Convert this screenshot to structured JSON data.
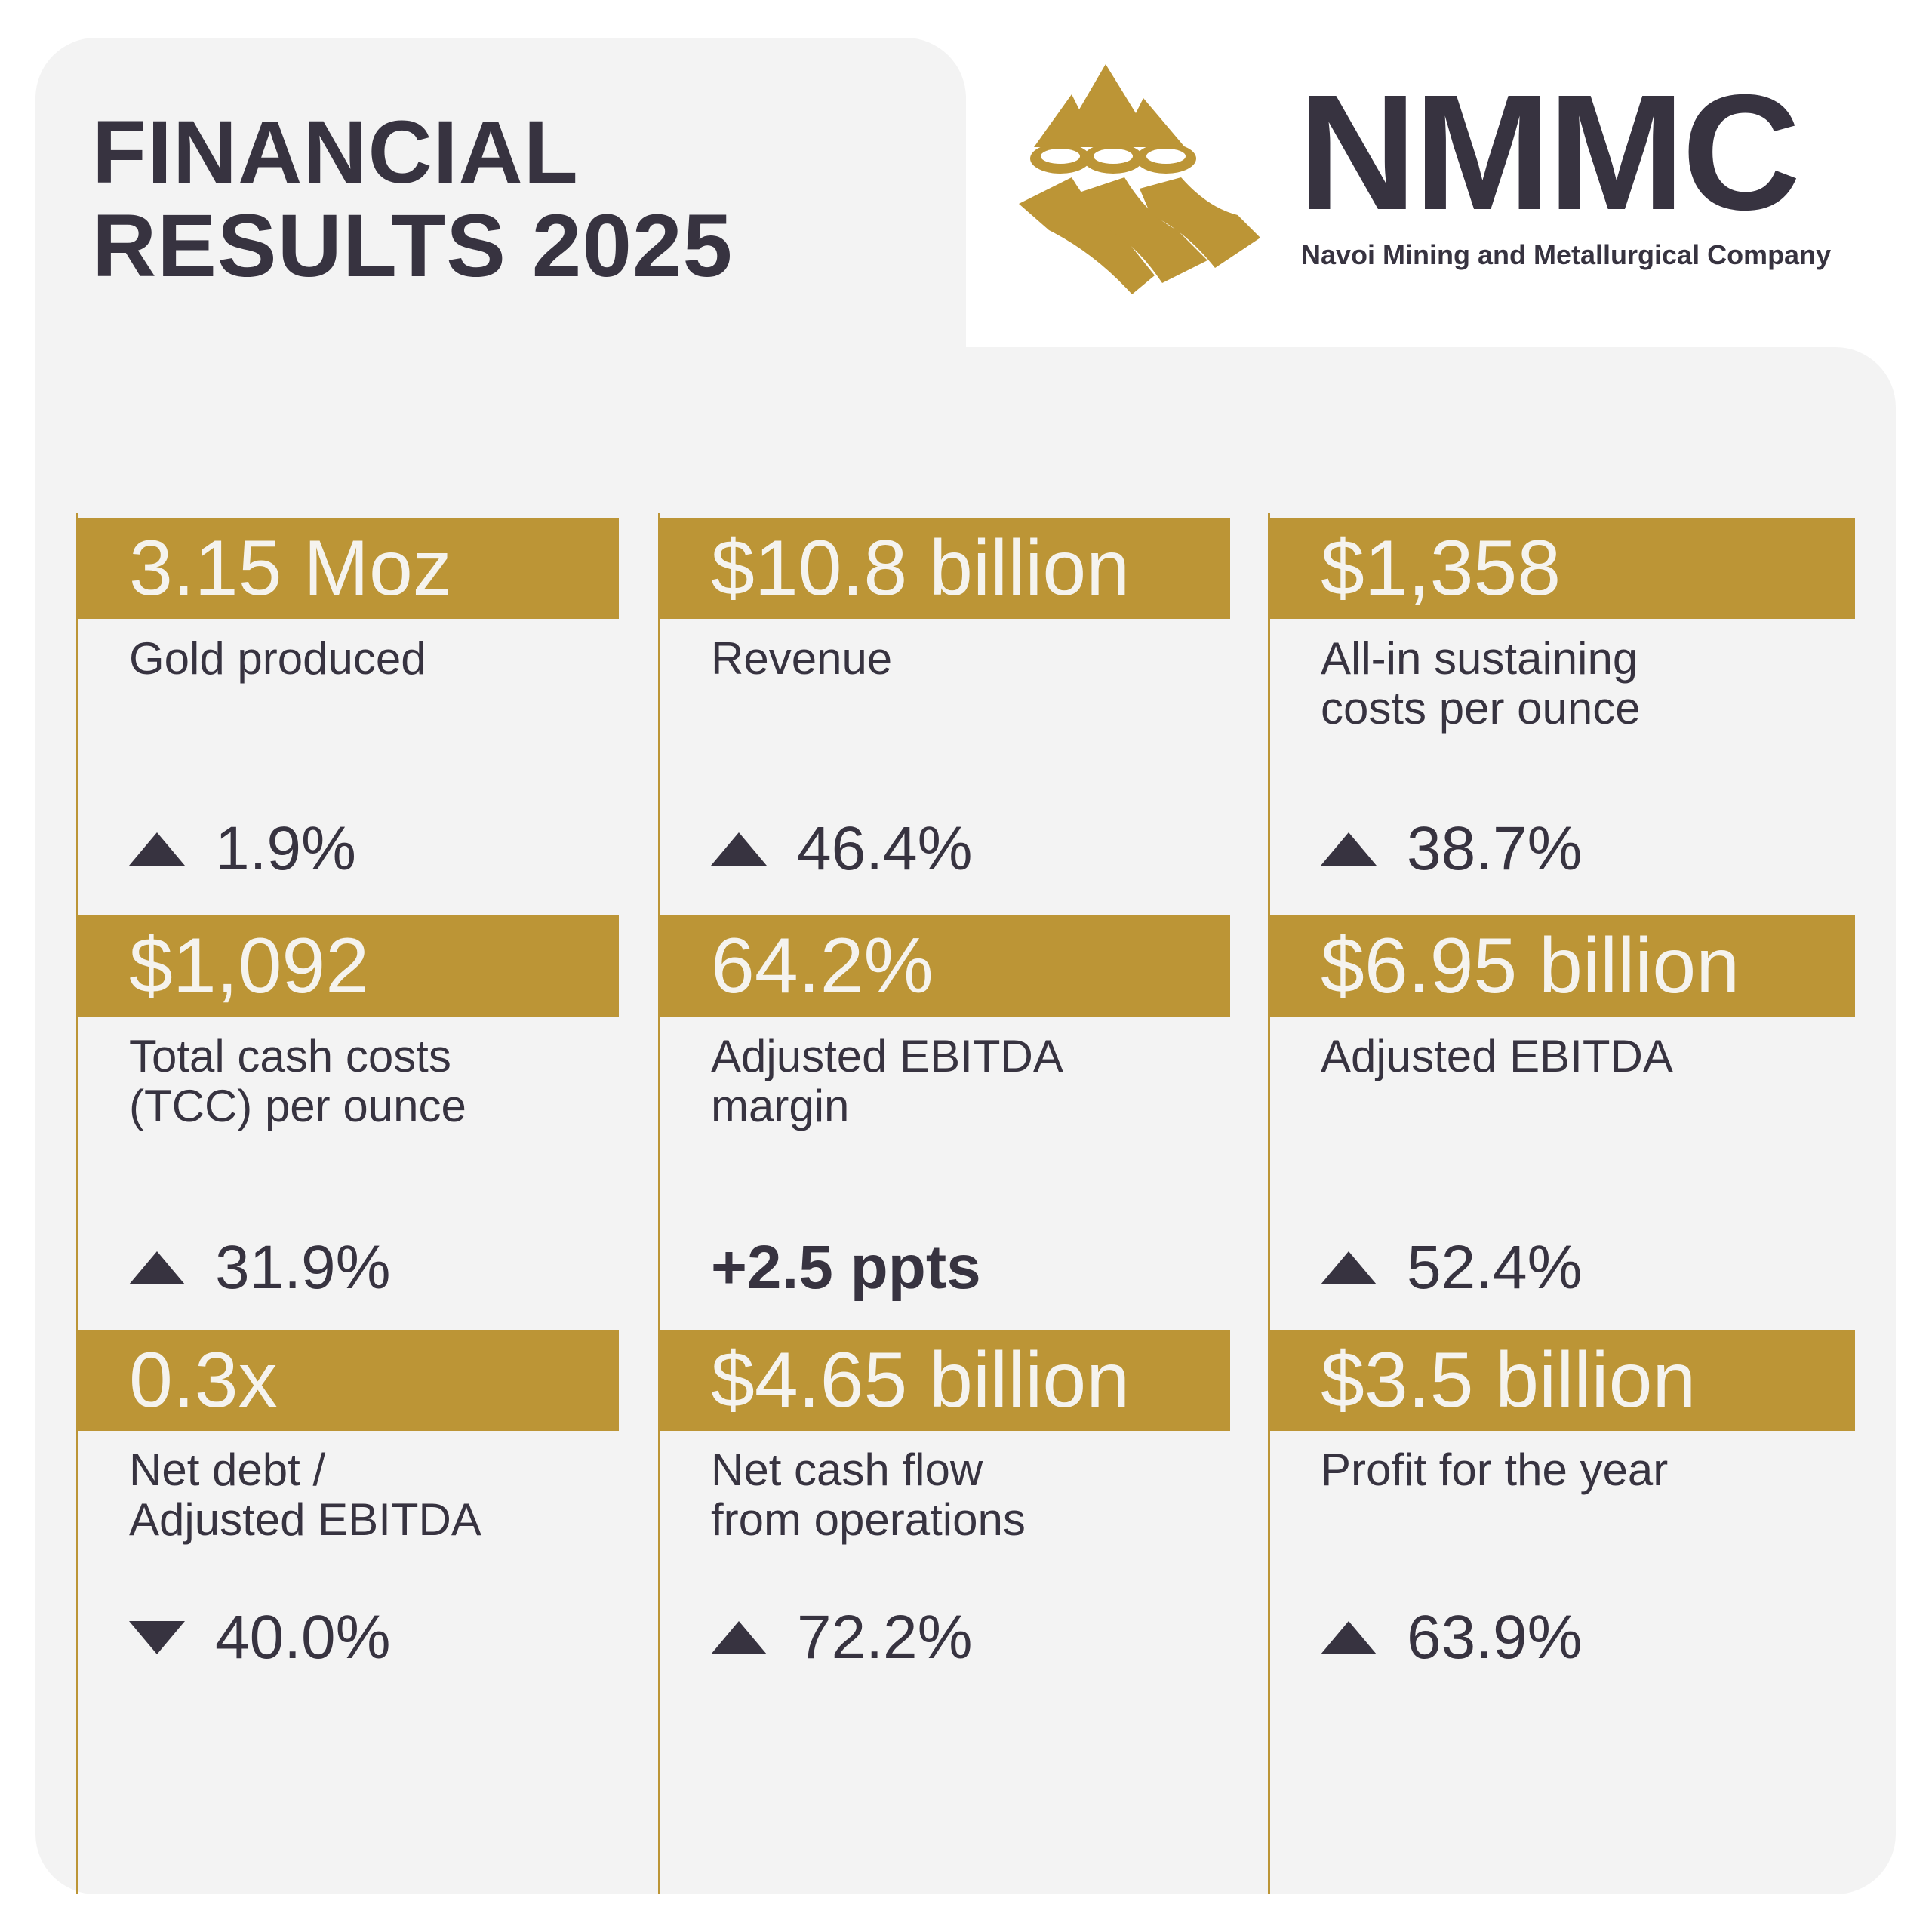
{
  "title": {
    "line1": "FINANCIAL",
    "line2": "RESULTS 2025"
  },
  "brand": {
    "name": "NMMC",
    "full": "Navoi Mining and Metallurgical Company",
    "color": "#bc9536",
    "text_color": "#373340"
  },
  "metrics": [
    {
      "value": "3.15 Moz",
      "label": "Gold produced",
      "change": "1.9%",
      "direction": "up"
    },
    {
      "value": "$10.8 billion",
      "label": "Revenue",
      "change": "46.4%",
      "direction": "up"
    },
    {
      "value": "$1,358",
      "label": "All-in sustaining\ncosts per ounce",
      "change": "38.7%",
      "direction": "up"
    },
    {
      "value": "$1,092",
      "label": "Total cash costs\n(TCC) per ounce",
      "change": "31.9%",
      "direction": "up"
    },
    {
      "value": "64.2%",
      "label": "Adjusted EBITDA\nmargin",
      "change": "+2.5 ppts",
      "direction": "none"
    },
    {
      "value": "$6.95 billion",
      "label": "Adjusted EBITDA",
      "change": "52.4%",
      "direction": "up"
    },
    {
      "value": "0.3x",
      "label": "Net debt /\nAdjusted EBITDA",
      "change": "40.0%",
      "direction": "down"
    },
    {
      "value": "$4.65 billion",
      "label": "Net cash flow\nfrom operations",
      "change": "72.2%",
      "direction": "up"
    },
    {
      "value": "$3.5 billion",
      "label": "Profit for the year",
      "change": "63.9%",
      "direction": "up"
    }
  ]
}
